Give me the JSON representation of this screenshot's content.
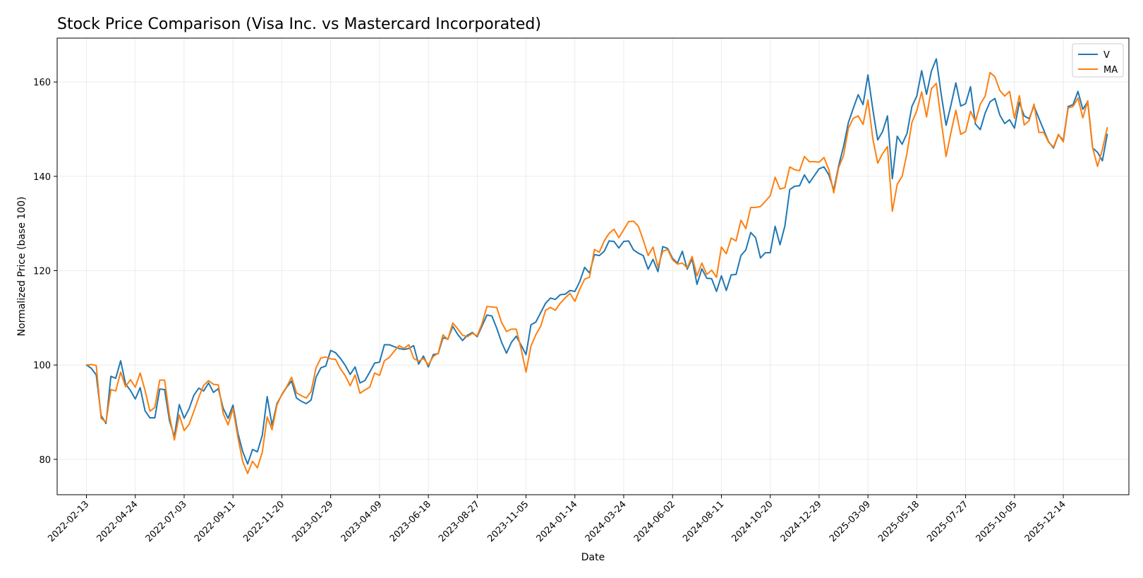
{
  "chart_data": {
    "type": "line",
    "title": "Stock Price Comparison (Visa Inc. vs Mastercard Incorporated)",
    "xlabel": "Date",
    "ylabel": "Normalized Price (base 100)",
    "ylim": [
      72.5,
      169.3
    ],
    "xlim": [
      "2022-01-02",
      "2026-03-18"
    ],
    "grid": true,
    "legend_position": "top-right",
    "yticks": [
      80,
      100,
      120,
      140,
      160
    ],
    "xticks": [
      "2022-02-13",
      "2022-04-24",
      "2022-07-03",
      "2022-09-11",
      "2022-11-20",
      "2023-01-29",
      "2023-04-09",
      "2023-06-18",
      "2023-08-27",
      "2023-11-05",
      "2024-01-14",
      "2024-03-24",
      "2024-06-02",
      "2024-08-11",
      "2024-10-20",
      "2024-12-29",
      "2025-03-09",
      "2025-05-18",
      "2025-07-27",
      "2025-10-05",
      "2025-12-14"
    ],
    "x_start": "2022-02-13",
    "x_step_days": 7,
    "series": [
      {
        "name": "V",
        "color": "#1f77b4",
        "values": [
          100.0,
          99.3,
          97.9,
          89.3,
          87.6,
          97.6,
          97.2,
          100.9,
          96.0,
          94.6,
          92.8,
          95.2,
          90.3,
          88.8,
          88.8,
          94.9,
          94.8,
          88.2,
          84.8,
          91.6,
          88.7,
          90.7,
          93.6,
          95.1,
          94.5,
          96.2,
          94.2,
          95.0,
          90.8,
          88.7,
          91.5,
          85.6,
          81.6,
          79.0,
          82.1,
          81.6,
          85.1,
          93.3,
          87.2,
          91.8,
          93.7,
          95.3,
          96.6,
          93.0,
          92.3,
          91.8,
          92.6,
          97.4,
          99.4,
          99.8,
          103.1,
          102.6,
          101.4,
          99.9,
          98.0,
          99.6,
          96.2,
          96.7,
          98.5,
          100.4,
          100.6,
          104.3,
          104.3,
          103.9,
          103.5,
          103.3,
          103.5,
          104.1,
          100.2,
          101.9,
          99.6,
          102.2,
          102.4,
          105.8,
          105.5,
          108.2,
          106.5,
          105.2,
          106.3,
          106.9,
          106.0,
          108.3,
          110.6,
          110.4,
          107.8,
          104.8,
          102.5,
          104.8,
          106.1,
          104.2,
          102.2,
          108.5,
          109.1,
          111.1,
          113.1,
          114.2,
          113.9,
          114.9,
          115.0,
          115.8,
          115.6,
          117.7,
          120.7,
          119.5,
          123.4,
          123.2,
          124.1,
          126.3,
          126.2,
          124.8,
          126.2,
          126.3,
          124.4,
          123.7,
          123.2,
          120.3,
          122.4,
          119.8,
          125.1,
          124.7,
          122.6,
          121.6,
          124.1,
          120.3,
          122.5,
          117.1,
          120.4,
          118.4,
          118.3,
          115.6,
          118.9,
          115.8,
          119.1,
          119.2,
          123.2,
          124.4,
          128.1,
          127.0,
          122.7,
          123.8,
          123.8,
          129.4,
          125.5,
          129.5,
          137.2,
          137.9,
          138.0,
          140.3,
          138.6,
          140.1,
          141.6,
          142.0,
          140.3,
          137.1,
          142.2,
          146.3,
          151.4,
          154.4,
          157.3,
          155.2,
          161.5,
          154.2,
          147.7,
          149.5,
          152.8,
          139.5,
          148.5,
          146.8,
          149.1,
          154.8,
          157.0,
          162.4,
          157.4,
          162.3,
          164.9,
          157.4,
          150.8,
          155.1,
          159.8,
          154.9,
          155.4,
          159.0,
          151.1,
          149.9,
          153.4,
          155.8,
          156.5,
          153.0,
          151.2,
          152.0,
          150.2,
          155.7,
          152.8,
          152.2,
          154.9,
          152.3,
          149.8,
          147.3,
          146.0,
          148.8,
          147.6,
          154.8,
          155.2,
          158.0,
          154.2,
          155.8,
          146.0,
          145.1,
          143.3,
          148.9
        ]
      },
      {
        "name": "MA",
        "color": "#ff7f0e",
        "values": [
          100.0,
          100.1,
          99.9,
          88.7,
          87.9,
          94.8,
          94.5,
          98.5,
          95.4,
          96.9,
          95.3,
          98.3,
          94.6,
          90.2,
          91.0,
          96.8,
          96.8,
          89.2,
          84.1,
          89.4,
          86.1,
          87.4,
          90.2,
          93.2,
          95.7,
          96.7,
          95.9,
          95.8,
          89.7,
          87.3,
          90.8,
          84.7,
          79.5,
          77.0,
          79.6,
          78.2,
          81.5,
          89.0,
          86.3,
          91.5,
          93.8,
          95.4,
          97.4,
          94.1,
          93.5,
          93.0,
          94.4,
          99.4,
          101.5,
          101.7,
          101.3,
          101.2,
          99.2,
          97.7,
          95.6,
          97.9,
          94.0,
          94.7,
          95.3,
          98.3,
          97.8,
          100.9,
          101.6,
          102.9,
          104.1,
          103.5,
          104.3,
          101.4,
          100.8,
          101.4,
          100.0,
          101.8,
          102.5,
          106.4,
          105.4,
          108.9,
          107.7,
          106.3,
          106.0,
          106.7,
          106.2,
          108.8,
          112.4,
          112.3,
          112.2,
          109.0,
          107.1,
          107.6,
          107.6,
          103.4,
          98.5,
          104.0,
          106.4,
          108.2,
          111.6,
          112.2,
          111.6,
          113.1,
          114.2,
          115.2,
          113.5,
          116.1,
          118.2,
          118.6,
          124.5,
          123.9,
          126.3,
          127.9,
          128.8,
          127.0,
          128.7,
          130.4,
          130.5,
          129.4,
          126.5,
          123.2,
          125.0,
          120.8,
          124.1,
          124.5,
          122.3,
          121.4,
          121.6,
          120.6,
          123.0,
          118.9,
          121.6,
          119.2,
          120.1,
          118.6,
          125.0,
          123.6,
          126.9,
          126.3,
          130.7,
          128.9,
          133.4,
          133.4,
          133.6,
          134.7,
          135.9,
          139.8,
          137.3,
          137.6,
          142.0,
          141.4,
          141.2,
          144.2,
          143.1,
          143.1,
          143.0,
          144.0,
          141.4,
          136.5,
          141.8,
          144.4,
          150.2,
          152.3,
          152.8,
          151.0,
          156.2,
          148.0,
          142.8,
          144.8,
          146.3,
          132.6,
          138.3,
          140.0,
          144.9,
          151.4,
          153.9,
          157.9,
          152.6,
          158.6,
          159.7,
          151.8,
          144.2,
          149.3,
          154.0,
          148.9,
          149.5,
          153.8,
          151.6,
          155.3,
          157.0,
          162.0,
          161.1,
          158.2,
          157.0,
          158.0,
          152.3,
          157.1,
          150.9,
          151.8,
          155.3,
          149.3,
          149.3,
          147.2,
          146.2,
          148.9,
          147.3,
          154.5,
          154.8,
          156.6,
          152.4,
          156.0,
          146.1,
          142.1,
          145.7,
          150.3
        ]
      }
    ]
  }
}
